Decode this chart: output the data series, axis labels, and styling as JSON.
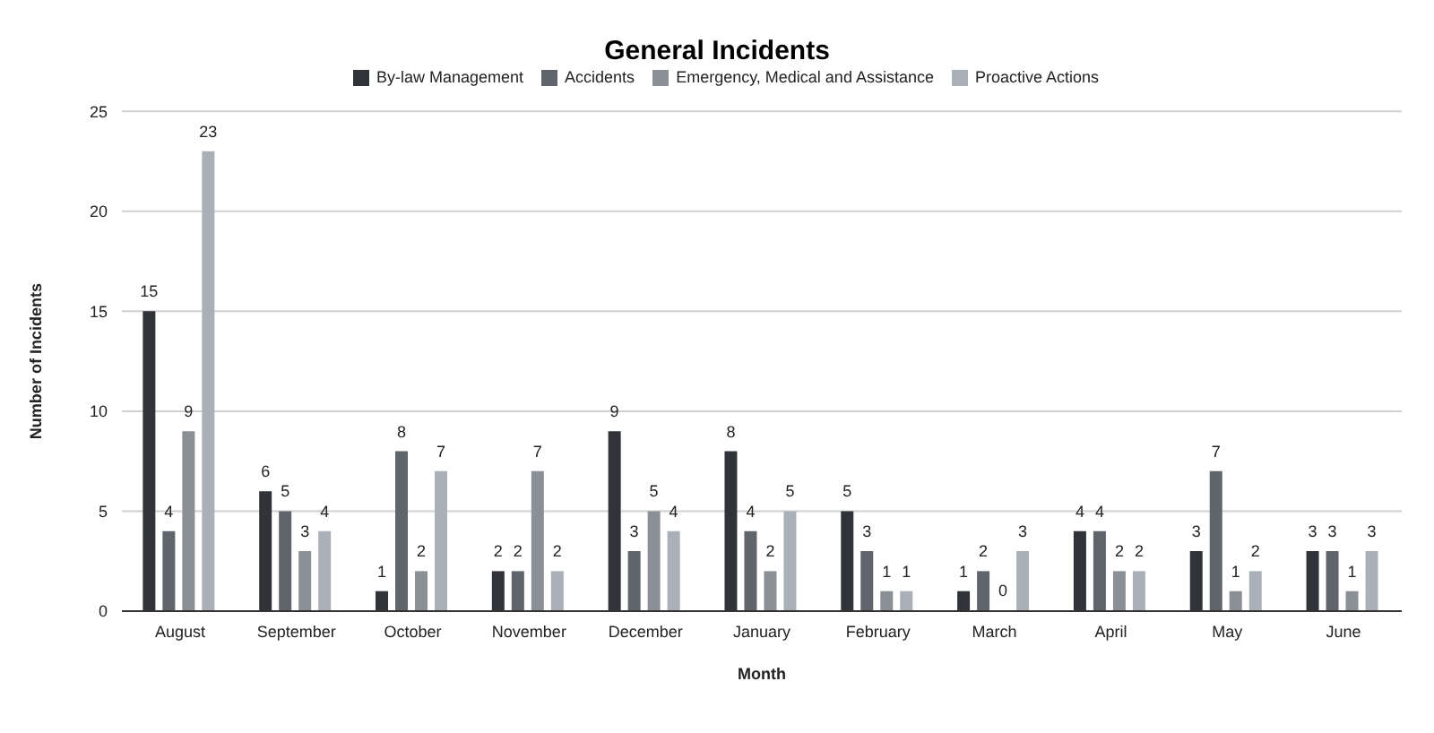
{
  "chart_data": {
    "type": "bar",
    "title": "General Incidents",
    "xlabel": "Month",
    "ylabel": "Number of Incidents",
    "categories": [
      "August",
      "September",
      "October",
      "November",
      "December",
      "January",
      "February",
      "March",
      "April",
      "May",
      "June"
    ],
    "series": [
      {
        "name": "By-law Management",
        "color": "#303438",
        "values": [
          15,
          6,
          1,
          2,
          9,
          8,
          5,
          1,
          4,
          3,
          3
        ]
      },
      {
        "name": "Accidents",
        "color": "#5f656b",
        "values": [
          4,
          5,
          8,
          2,
          3,
          4,
          3,
          2,
          4,
          7,
          3
        ]
      },
      {
        "name": "Emergency, Medical and Assistance",
        "color": "#8b9096",
        "values": [
          9,
          3,
          2,
          7,
          5,
          2,
          1,
          0,
          2,
          1,
          1
        ]
      },
      {
        "name": "Proactive Actions",
        "color": "#a9b0b7",
        "values": [
          23,
          4,
          7,
          2,
          4,
          5,
          1,
          3,
          2,
          2,
          3
        ]
      }
    ],
    "ylim": [
      0,
      25
    ],
    "yticks": [
      0,
      5,
      10,
      15,
      20,
      25
    ],
    "grid": "y",
    "legend": "top",
    "data_labels": true
  }
}
